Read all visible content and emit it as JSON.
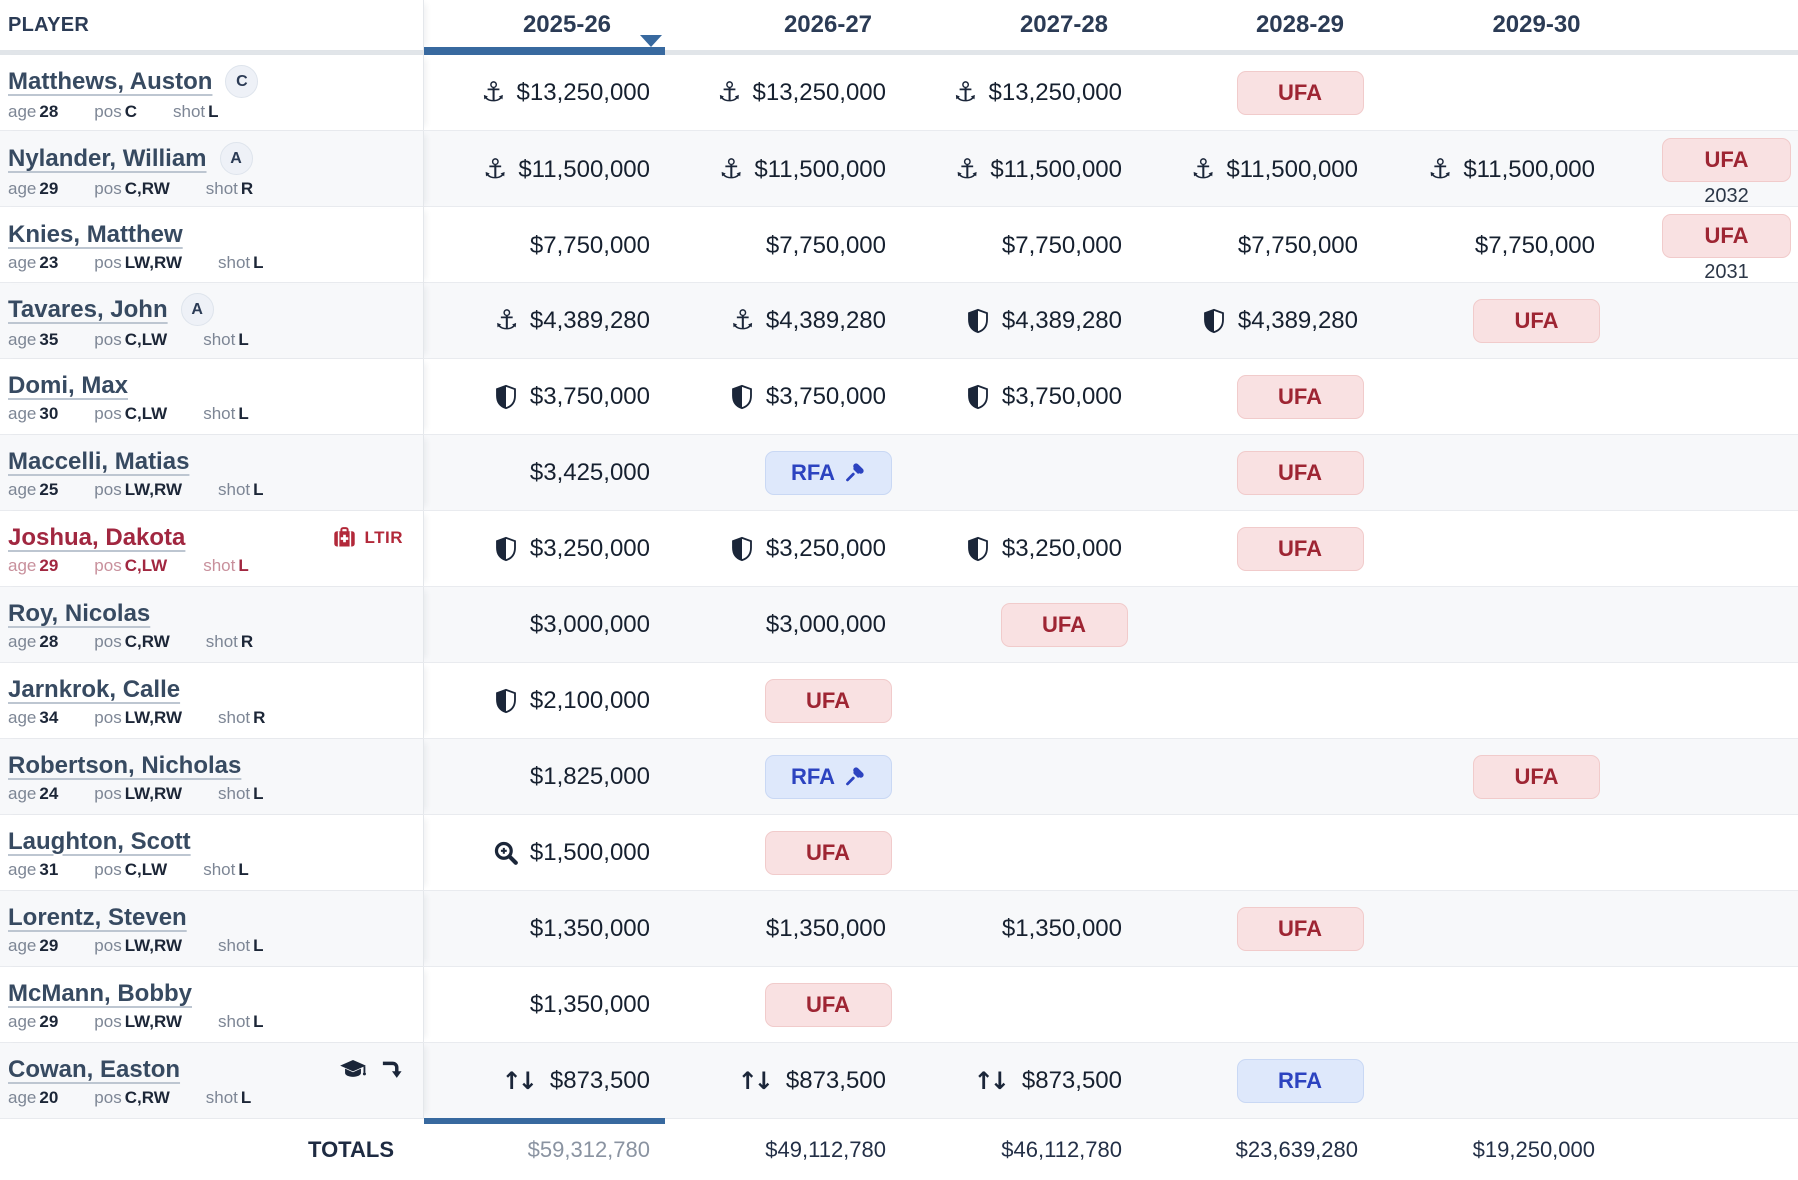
{
  "colors": {
    "accent_blue": "#38699f",
    "navy_text": "#1b2639",
    "name_link": "#374a61",
    "ufa_bg": "#f9e1e2",
    "ufa_text": "#9e2533",
    "rfa_bg": "#dee8fb",
    "rfa_text": "#2c43c0",
    "ltir_red": "#b22839",
    "injured_row_red": "#a12740",
    "row_stripe": "#f7f8fa"
  },
  "table": {
    "player_header": "PLAYER",
    "seasons": [
      "2025-26",
      "2026-27",
      "2027-28",
      "2028-29",
      "2029-30"
    ],
    "selected_season": "2025-26",
    "info_labels": {
      "age": "age",
      "pos": "pos",
      "shot": "shot"
    },
    "players": [
      {
        "name": "Matthews, Auston",
        "designation": "C",
        "age": "28",
        "pos": "C",
        "shot": "L",
        "theme": "normal",
        "status_icons": [],
        "cells": [
          {
            "type": "money",
            "icon": "anchor",
            "value": "$13,250,000"
          },
          {
            "type": "money",
            "icon": "anchor",
            "value": "$13,250,000"
          },
          {
            "type": "money",
            "icon": "anchor",
            "value": "$13,250,000"
          },
          {
            "type": "badge",
            "variant": "ufa",
            "label": "UFA"
          },
          {
            "type": "empty"
          },
          {
            "type": "empty"
          }
        ]
      },
      {
        "name": "Nylander, William",
        "designation": "A",
        "age": "29",
        "pos": "C,RW",
        "shot": "R",
        "theme": "normal",
        "status_icons": [],
        "cells": [
          {
            "type": "money",
            "icon": "anchor",
            "value": "$11,500,000"
          },
          {
            "type": "money",
            "icon": "anchor",
            "value": "$11,500,000"
          },
          {
            "type": "money",
            "icon": "anchor",
            "value": "$11,500,000"
          },
          {
            "type": "money",
            "icon": "anchor",
            "value": "$11,500,000"
          },
          {
            "type": "money",
            "icon": "anchor",
            "value": "$11,500,000"
          },
          {
            "type": "badge_year",
            "variant": "ufa",
            "label": "UFA",
            "year": "2032"
          }
        ]
      },
      {
        "name": "Knies, Matthew",
        "designation": "",
        "age": "23",
        "pos": "LW,RW",
        "shot": "L",
        "theme": "normal",
        "status_icons": [],
        "cells": [
          {
            "type": "money",
            "icon": "",
            "value": "$7,750,000"
          },
          {
            "type": "money",
            "icon": "",
            "value": "$7,750,000"
          },
          {
            "type": "money",
            "icon": "",
            "value": "$7,750,000"
          },
          {
            "type": "money",
            "icon": "",
            "value": "$7,750,000"
          },
          {
            "type": "money",
            "icon": "",
            "value": "$7,750,000"
          },
          {
            "type": "badge_year",
            "variant": "ufa",
            "label": "UFA",
            "year": "2031"
          }
        ]
      },
      {
        "name": "Tavares, John",
        "designation": "A",
        "age": "35",
        "pos": "C,LW",
        "shot": "L",
        "theme": "normal",
        "status_icons": [],
        "cells": [
          {
            "type": "money",
            "icon": "anchor",
            "value": "$4,389,280"
          },
          {
            "type": "money",
            "icon": "anchor",
            "value": "$4,389,280"
          },
          {
            "type": "money",
            "icon": "shield",
            "value": "$4,389,280"
          },
          {
            "type": "money",
            "icon": "shield",
            "value": "$4,389,280"
          },
          {
            "type": "badge",
            "variant": "ufa",
            "label": "UFA"
          },
          {
            "type": "empty"
          }
        ]
      },
      {
        "name": "Domi, Max",
        "designation": "",
        "age": "30",
        "pos": "C,LW",
        "shot": "L",
        "theme": "normal",
        "status_icons": [],
        "cells": [
          {
            "type": "money",
            "icon": "shield",
            "value": "$3,750,000"
          },
          {
            "type": "money",
            "icon": "shield",
            "value": "$3,750,000"
          },
          {
            "type": "money",
            "icon": "shield",
            "value": "$3,750,000"
          },
          {
            "type": "badge",
            "variant": "ufa",
            "label": "UFA"
          },
          {
            "type": "empty"
          },
          {
            "type": "empty"
          }
        ]
      },
      {
        "name": "Maccelli, Matias",
        "designation": "",
        "age": "25",
        "pos": "LW,RW",
        "shot": "L",
        "theme": "normal",
        "status_icons": [],
        "cells": [
          {
            "type": "money",
            "icon": "",
            "value": "$3,425,000"
          },
          {
            "type": "badge",
            "variant": "rfa",
            "label": "RFA",
            "gavel": true
          },
          {
            "type": "empty"
          },
          {
            "type": "badge",
            "variant": "ufa",
            "label": "UFA"
          },
          {
            "type": "empty"
          },
          {
            "type": "empty"
          }
        ]
      },
      {
        "name": "Joshua, Dakota",
        "designation": "",
        "age": "29",
        "pos": "C,LW",
        "shot": "L",
        "theme": "red",
        "status_icons": [
          {
            "icon": "medical-kit",
            "label": "LTIR"
          }
        ],
        "cells": [
          {
            "type": "money",
            "icon": "shield",
            "value": "$3,250,000"
          },
          {
            "type": "money",
            "icon": "shield",
            "value": "$3,250,000"
          },
          {
            "type": "money",
            "icon": "shield",
            "value": "$3,250,000"
          },
          {
            "type": "badge",
            "variant": "ufa",
            "label": "UFA"
          },
          {
            "type": "empty"
          },
          {
            "type": "empty"
          }
        ]
      },
      {
        "name": "Roy, Nicolas",
        "designation": "",
        "age": "28",
        "pos": "C,RW",
        "shot": "R",
        "theme": "normal",
        "status_icons": [],
        "cells": [
          {
            "type": "money",
            "icon": "",
            "value": "$3,000,000"
          },
          {
            "type": "money",
            "icon": "",
            "value": "$3,000,000"
          },
          {
            "type": "badge",
            "variant": "ufa",
            "label": "UFA"
          },
          {
            "type": "empty"
          },
          {
            "type": "empty"
          },
          {
            "type": "empty"
          }
        ]
      },
      {
        "name": "Jarnkrok, Calle",
        "designation": "",
        "age": "34",
        "pos": "LW,RW",
        "shot": "R",
        "theme": "normal",
        "status_icons": [],
        "cells": [
          {
            "type": "money",
            "icon": "shield",
            "value": "$2,100,000"
          },
          {
            "type": "badge",
            "variant": "ufa",
            "label": "UFA"
          },
          {
            "type": "empty"
          },
          {
            "type": "empty"
          },
          {
            "type": "empty"
          },
          {
            "type": "empty"
          }
        ]
      },
      {
        "name": "Robertson, Nicholas",
        "designation": "",
        "age": "24",
        "pos": "LW,RW",
        "shot": "L",
        "theme": "normal",
        "status_icons": [],
        "cells": [
          {
            "type": "money",
            "icon": "",
            "value": "$1,825,000"
          },
          {
            "type": "badge",
            "variant": "rfa",
            "label": "RFA",
            "gavel": true
          },
          {
            "type": "empty"
          },
          {
            "type": "empty"
          },
          {
            "type": "badge",
            "variant": "ufa",
            "label": "UFA"
          },
          {
            "type": "empty"
          }
        ]
      },
      {
        "name": "Laughton, Scott",
        "designation": "",
        "age": "31",
        "pos": "C,LW",
        "shot": "L",
        "theme": "normal",
        "status_icons": [],
        "cells": [
          {
            "type": "money",
            "icon": "zoom-plus",
            "value": "$1,500,000"
          },
          {
            "type": "badge",
            "variant": "ufa",
            "label": "UFA"
          },
          {
            "type": "empty"
          },
          {
            "type": "empty"
          },
          {
            "type": "empty"
          },
          {
            "type": "empty"
          }
        ]
      },
      {
        "name": "Lorentz, Steven",
        "designation": "",
        "age": "29",
        "pos": "LW,RW",
        "shot": "L",
        "theme": "normal",
        "status_icons": [],
        "cells": [
          {
            "type": "money",
            "icon": "",
            "value": "$1,350,000"
          },
          {
            "type": "money",
            "icon": "",
            "value": "$1,350,000"
          },
          {
            "type": "money",
            "icon": "",
            "value": "$1,350,000"
          },
          {
            "type": "badge",
            "variant": "ufa",
            "label": "UFA"
          },
          {
            "type": "empty"
          },
          {
            "type": "empty"
          }
        ]
      },
      {
        "name": "McMann, Bobby",
        "designation": "",
        "age": "29",
        "pos": "LW,RW",
        "shot": "L",
        "theme": "normal",
        "status_icons": [],
        "cells": [
          {
            "type": "money",
            "icon": "",
            "value": "$1,350,000"
          },
          {
            "type": "badge",
            "variant": "ufa",
            "label": "UFA"
          },
          {
            "type": "empty"
          },
          {
            "type": "empty"
          },
          {
            "type": "empty"
          },
          {
            "type": "empty"
          }
        ]
      },
      {
        "name": "Cowan, Easton",
        "designation": "",
        "age": "20",
        "pos": "C,RW",
        "shot": "L",
        "theme": "normal",
        "status_icons": [
          {
            "icon": "graduation-cap"
          },
          {
            "icon": "arrow-turn-down"
          }
        ],
        "cells": [
          {
            "type": "money",
            "icon": "two-way",
            "value": "$873,500"
          },
          {
            "type": "money",
            "icon": "two-way",
            "value": "$873,500"
          },
          {
            "type": "money",
            "icon": "two-way",
            "value": "$873,500"
          },
          {
            "type": "badge",
            "variant": "rfa",
            "label": "RFA"
          },
          {
            "type": "empty"
          },
          {
            "type": "empty"
          }
        ]
      }
    ],
    "totals": {
      "label": "TOTALS",
      "values": [
        "$59,312,780",
        "$49,112,780",
        "$46,112,780",
        "$23,639,280",
        "$19,250,000"
      ]
    }
  }
}
